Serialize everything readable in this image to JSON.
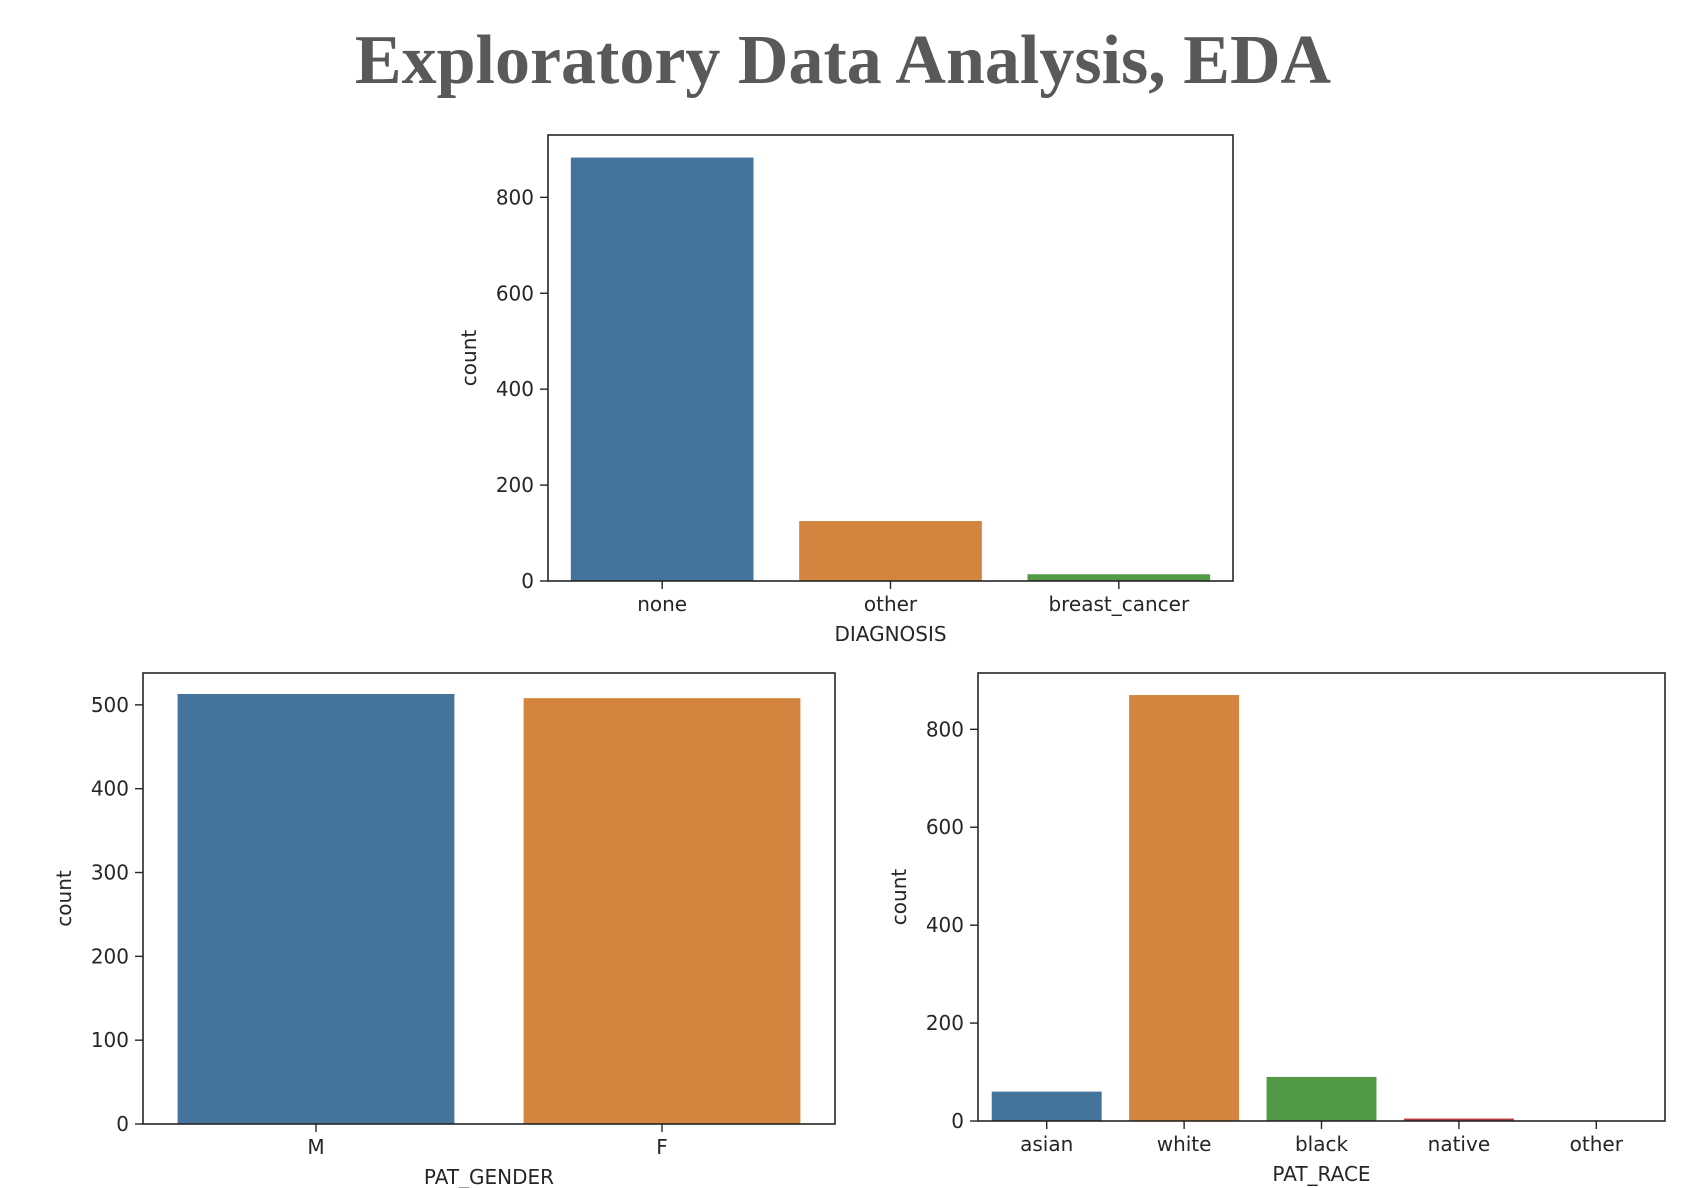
{
  "page": {
    "title": "Exploratory Data Analysis, EDA"
  },
  "chart_data": [
    {
      "type": "bar",
      "categories": [
        "none",
        "other",
        "breast_cancer"
      ],
      "values": [
        883,
        125,
        14
      ],
      "title": "",
      "xlabel": "DIAGNOSIS",
      "ylabel": "count",
      "ylim": [
        0,
        930
      ],
      "yticks": [
        0,
        200,
        400,
        600,
        800
      ],
      "colors": [
        "#44739c",
        "#d3843f",
        "#529a45"
      ],
      "grid": false
    },
    {
      "type": "bar",
      "categories": [
        "M",
        "F"
      ],
      "values": [
        513,
        508
      ],
      "title": "",
      "xlabel": "PAT_GENDER",
      "ylabel": "count",
      "ylim": [
        0,
        538
      ],
      "yticks": [
        0,
        100,
        200,
        300,
        400,
        500
      ],
      "colors": [
        "#44739c",
        "#d3843f"
      ],
      "grid": false
    },
    {
      "type": "bar",
      "categories": [
        "asian",
        "white",
        "black",
        "native",
        "other"
      ],
      "values": [
        60,
        870,
        90,
        5,
        1
      ],
      "title": "",
      "xlabel": "PAT_RACE",
      "ylabel": "count",
      "ylim": [
        0,
        915
      ],
      "yticks": [
        0,
        200,
        400,
        600,
        800
      ],
      "colors": [
        "#44739c",
        "#d3843f",
        "#529a45",
        "#b83c3e",
        "#8a70a8"
      ],
      "grid": false
    }
  ]
}
